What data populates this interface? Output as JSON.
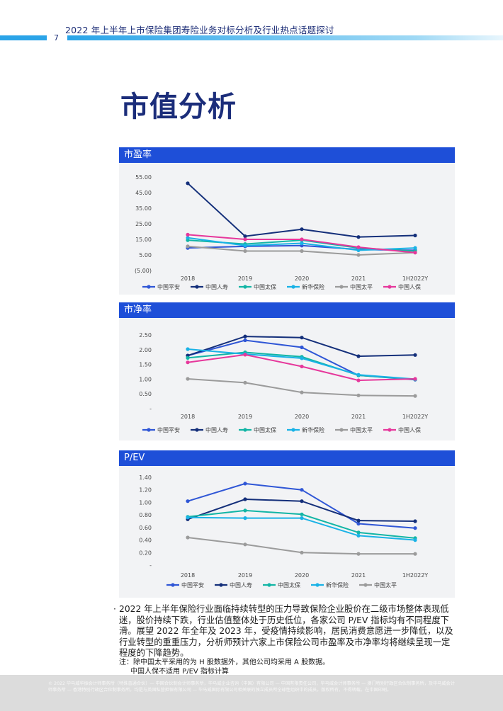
{
  "header": {
    "title": "2022 年上半年上市保险集团寿险业务对标分析及行业热点话题探讨",
    "page_number": "7"
  },
  "page_title": "市值分析",
  "colors": {
    "中国平安": "#2f56d6",
    "中国人寿": "#142f7a",
    "中国太保": "#12b5a5",
    "新华保险": "#19b2e6",
    "中国太平": "#9b9b9b",
    "中国人保": "#e6379b"
  },
  "panels": [
    {
      "title": "市盈率"
    },
    {
      "title": "市净率"
    },
    {
      "title": "P/EV"
    }
  ],
  "chart_data": [
    {
      "type": "line",
      "title": "市盈率",
      "x": [
        "2018",
        "2019",
        "2020",
        "2021",
        "1H2022Y"
      ],
      "yticks": [
        "55.00",
        "45.00",
        "35.00",
        "25.00",
        "15.00",
        "5.00",
        "(5.00)"
      ],
      "ylim": [
        -5,
        55
      ],
      "legend": "bottom",
      "series": [
        {
          "name": "中国平安",
          "values": [
            9.5,
            10.5,
            11,
            8.5,
            8
          ]
        },
        {
          "name": "中国人寿",
          "values": [
            51,
            17,
            21.5,
            16.5,
            17.5
          ]
        },
        {
          "name": "中国太保",
          "values": [
            14.5,
            12,
            14.5,
            9.5,
            7.5
          ]
        },
        {
          "name": "新华保险",
          "values": [
            16,
            11,
            12.5,
            8,
            9.5
          ]
        },
        {
          "name": "中国太平",
          "values": [
            10.5,
            7.5,
            7.5,
            5,
            6.5
          ]
        },
        {
          "name": "中国人保",
          "values": [
            18,
            15,
            15,
            10,
            6.5
          ]
        }
      ]
    },
    {
      "type": "line",
      "title": "市净率",
      "x": [
        "2018",
        "2019",
        "2020",
        "2021",
        "1H2022Y"
      ],
      "yticks": [
        "2.50",
        "2.00",
        "1.50",
        "1.00",
        "0.50",
        "-"
      ],
      "ylim": [
        0,
        2.5
      ],
      "legend": "bottom",
      "series": [
        {
          "name": "中国平安",
          "values": [
            1.8,
            2.32,
            2.08,
            1.13,
            0.98
          ]
        },
        {
          "name": "中国人寿",
          "values": [
            1.8,
            2.45,
            2.41,
            1.78,
            1.82
          ]
        },
        {
          "name": "中国太保",
          "values": [
            1.72,
            1.91,
            1.76,
            1.13,
            0.99
          ]
        },
        {
          "name": "新华保险",
          "values": [
            2.02,
            1.85,
            1.71,
            1.15,
            1.0
          ]
        },
        {
          "name": "中国太平",
          "values": [
            1.01,
            0.88,
            0.55,
            0.45,
            0.43
          ]
        },
        {
          "name": "中国人保",
          "values": [
            1.57,
            1.83,
            1.43,
            0.96,
            1.01
          ]
        }
      ]
    },
    {
      "type": "line",
      "title": "P/EV",
      "x": [
        "2018",
        "2019",
        "2020",
        "2021",
        "1H2022Y"
      ],
      "yticks": [
        "1.40",
        "1.20",
        "1.00",
        "0.80",
        "0.60",
        "0.40",
        "0.20",
        "-"
      ],
      "ylim": [
        0,
        1.4
      ],
      "legend": "bottom",
      "series": [
        {
          "name": "中国平安",
          "values": [
            1.02,
            1.3,
            1.2,
            0.66,
            0.59
          ]
        },
        {
          "name": "中国人寿",
          "values": [
            0.73,
            1.05,
            1.02,
            0.71,
            0.7
          ]
        },
        {
          "name": "中国太保",
          "values": [
            0.77,
            0.87,
            0.81,
            0.52,
            0.43
          ]
        },
        {
          "name": "新华保险",
          "values": [
            0.76,
            0.75,
            0.75,
            0.47,
            0.4
          ]
        },
        {
          "name": "中国太平",
          "values": [
            0.44,
            0.33,
            0.2,
            0.18,
            0.18
          ]
        }
      ]
    }
  ],
  "body": {
    "bullet": "2022 年上半年保险行业面临持续转型的压力导致保险企业股价在二级市场整体表现低迷，股价持续下跌，行业估值整体处于历史低位，各家公司 P/EV 指标均有不同程度下滑。展望 2022 年全年及 2023 年，受疫情持续影响，居民消费意愿进一步降低，以及行业转型的重重压力，分析师预计六家上市保险公司市盈率及市净率均将继续呈现一定程度的下降趋势。"
  },
  "note": {
    "line1": "注：除中国太平采用的为 H 股数据外，其他公司均采用 A 股数据。",
    "line2": "中国人保不适用 P/EV 指标计算"
  },
  "footer": {
    "text": "© 2022 毕马威华振会计师事务所（特殊普通合伙）— 中国合伙制会计师事务所，毕马威企业咨询（中国）有限公司 — 中国有限责任公司，毕马威会计师事务所 — 澳门特别行政区合伙制事务所，及毕马威会计师事务所 — 香港特别行政区合伙制事务所，均是与英国私营担保有限公司 — 毕马威国际有限公司相关联的独立成员所全球性组织中的成员。版权所有，不得转载。在中国印刷。"
  }
}
